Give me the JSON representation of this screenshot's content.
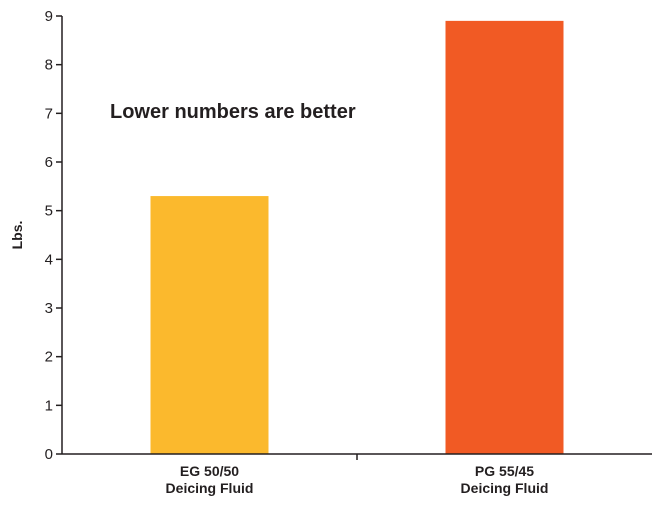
{
  "chart_data": {
    "type": "bar",
    "categories": [
      [
        "EG 50/50",
        "Deicing Fluid"
      ],
      [
        "PG 55/45",
        "Deicing Fluid"
      ]
    ],
    "values": [
      5.3,
      8.9
    ],
    "colors": [
      "#fbb92d",
      "#f15a24"
    ],
    "title": "",
    "xlabel": "",
    "ylabel": "Lbs.",
    "ylim": [
      0,
      9
    ],
    "yticks": [
      0,
      1,
      2,
      3,
      4,
      5,
      6,
      7,
      8,
      9
    ],
    "grid": false,
    "annotation": "Lower numbers are better"
  }
}
